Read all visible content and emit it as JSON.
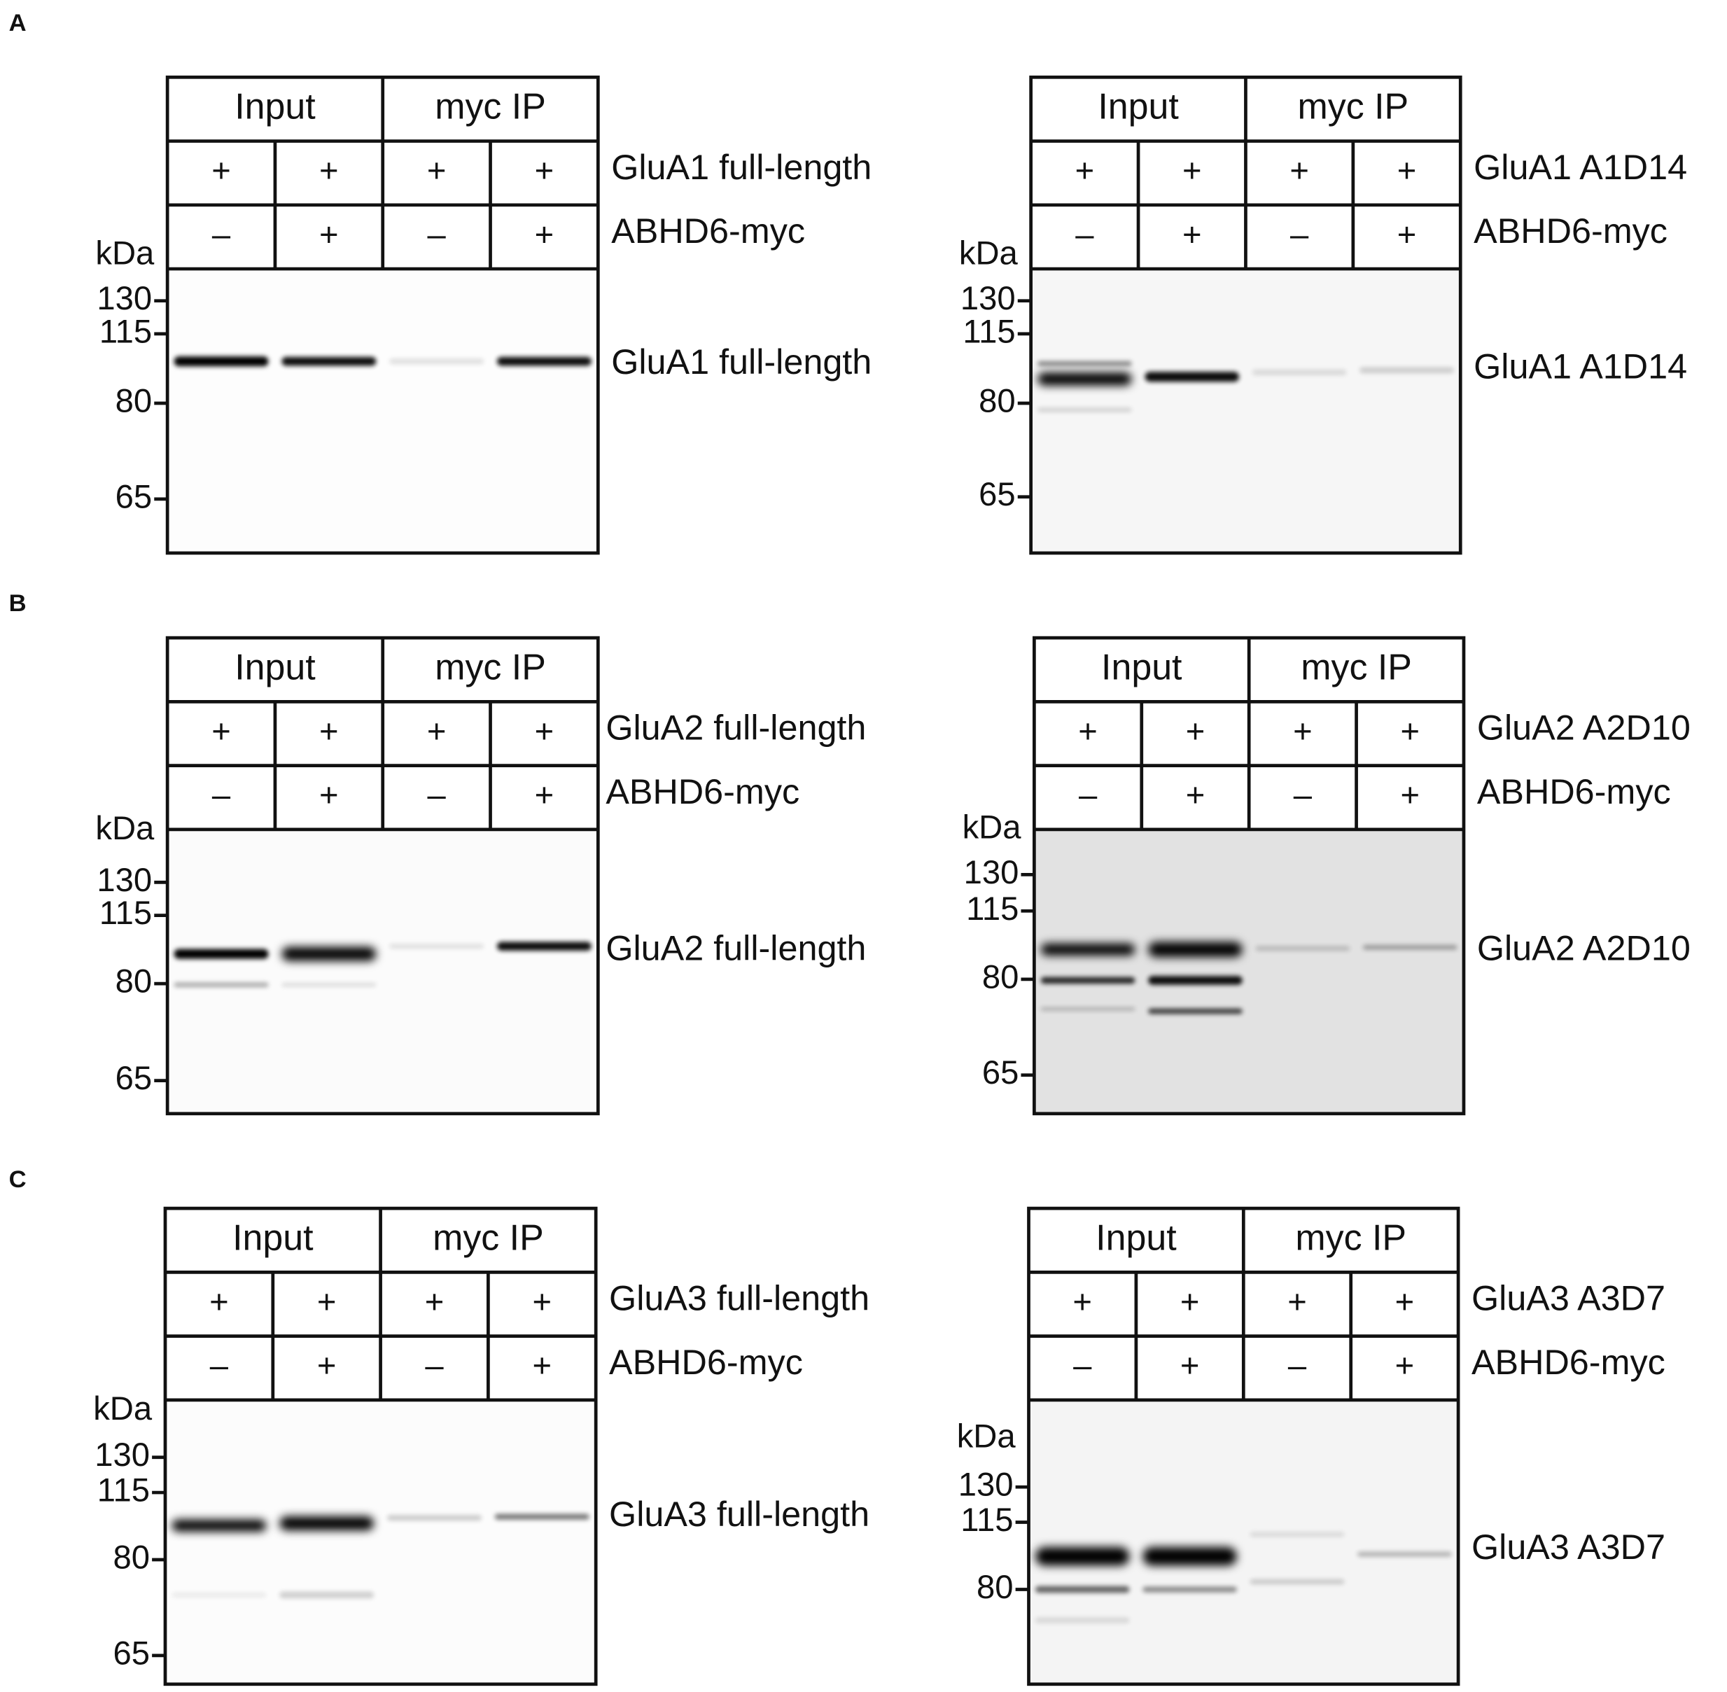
{
  "panels": [
    {
      "label": "A",
      "blots": [
        {
          "header": [
            "Input",
            "myc IP"
          ],
          "row1": {
            "signs": [
              "+",
              "+",
              "+",
              "+"
            ],
            "label": "GluA1 full-length"
          },
          "row2": {
            "signs": [
              "–",
              "+",
              "–",
              "+"
            ],
            "label": "ABHD6-myc"
          },
          "unit": "kDa",
          "markers": [
            130,
            115,
            80,
            65
          ],
          "band_label": "GluA1 full-length"
        },
        {
          "header": [
            "Input",
            "myc IP"
          ],
          "row1": {
            "signs": [
              "+",
              "+",
              "+",
              "+"
            ],
            "label": "GluA1 A1D14"
          },
          "row2": {
            "signs": [
              "–",
              "+",
              "–",
              "+"
            ],
            "label": "ABHD6-myc"
          },
          "unit": "kDa",
          "markers": [
            130,
            115,
            80,
            65
          ],
          "band_label": "GluA1 A1D14"
        }
      ]
    },
    {
      "label": "B",
      "blots": [
        {
          "header": [
            "Input",
            "myc IP"
          ],
          "row1": {
            "signs": [
              "+",
              "+",
              "+",
              "+"
            ],
            "label": "GluA2 full-length"
          },
          "row2": {
            "signs": [
              "–",
              "+",
              "–",
              "+"
            ],
            "label": "ABHD6-myc"
          },
          "unit": "kDa",
          "markers": [
            130,
            115,
            80,
            65
          ],
          "band_label": "GluA2 full-length"
        },
        {
          "header": [
            "Input",
            "myc IP"
          ],
          "row1": {
            "signs": [
              "+",
              "+",
              "+",
              "+"
            ],
            "label": "GluA2 A2D10"
          },
          "row2": {
            "signs": [
              "–",
              "+",
              "–",
              "+"
            ],
            "label": "ABHD6-myc"
          },
          "unit": "kDa",
          "markers": [
            130,
            115,
            80,
            65
          ],
          "band_label": "GluA2 A2D10"
        }
      ]
    },
    {
      "label": "C",
      "blots": [
        {
          "header": [
            "Input",
            "myc IP"
          ],
          "row1": {
            "signs": [
              "+",
              "+",
              "+",
              "+"
            ],
            "label": "GluA3 full-length"
          },
          "row2": {
            "signs": [
              "–",
              "+",
              "–",
              "+"
            ],
            "label": "ABHD6-myc"
          },
          "unit": "kDa",
          "markers": [
            130,
            115,
            80,
            65
          ],
          "band_label": "GluA3 full-length"
        },
        {
          "header": [
            "Input",
            "myc IP"
          ],
          "row1": {
            "signs": [
              "+",
              "+",
              "+",
              "+"
            ],
            "label": "GluA3 A3D7"
          },
          "row2": {
            "signs": [
              "–",
              "+",
              "–",
              "+"
            ],
            "label": "ABHD6-myc"
          },
          "unit": "kDa",
          "markers": [
            130,
            115,
            80
          ],
          "band_label": "GluA3 A3D7"
        }
      ]
    }
  ]
}
